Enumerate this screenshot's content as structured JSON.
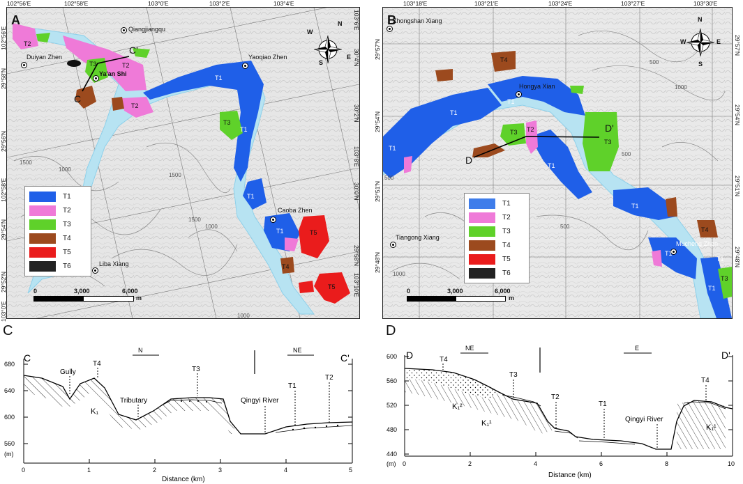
{
  "panel_a": {
    "letter": "A",
    "top_coords": [
      "102°56'E",
      "102°58'E",
      "103°0'E",
      "103°2'E",
      "103°4'E"
    ],
    "left_coords": [
      "102°56'E",
      "29°58'N",
      "29°56'N",
      "102°58'E",
      "29°54'N",
      "29°52'N",
      "103°0'E"
    ],
    "right_coords": [
      "103°6'E",
      "30°4'N",
      "30°2'N",
      "103°8'E",
      "30°0'N",
      "29°58'N",
      "103°10'E"
    ],
    "places": [
      "Qiangjiangqu",
      "Duiyan Zhen",
      "Ya'an Shi",
      "Yaoqiao Zhen",
      "Caoba Zhen",
      "Liba Xiang"
    ],
    "section_c": "C",
    "section_c_prime": "C'",
    "terrace_labels": [
      "T2",
      "T3",
      "T2",
      "T2",
      "T1",
      "T3",
      "T1",
      "T1",
      "T1",
      "T5",
      "T4",
      "T5"
    ],
    "contours": [
      "1500",
      "1000",
      "1500",
      "1000",
      "1500",
      "1000"
    ],
    "legend": [
      "T1",
      "T2",
      "T3",
      "T4",
      "T5",
      "T6"
    ],
    "scale": {
      "start": "0",
      "mid": "3,000",
      "end": "6,000",
      "unit": "m"
    }
  },
  "panel_b": {
    "letter": "B",
    "top_coords": [
      "103°18'E",
      "103°21'E",
      "103°24'E",
      "103°27'E",
      "103°30'E"
    ],
    "left_coords": [
      "29°57'N",
      "29°54'N",
      "29°51'N",
      "29°48'N"
    ],
    "right_coords": [
      "29°57'N",
      "29°54'N",
      "29°51'N",
      "29°48'N"
    ],
    "places": [
      "Zhongshan Xiang",
      "Hongya Xian",
      "Tiangong Xiang",
      "Mucheng Zhen"
    ],
    "section_d": "D",
    "section_d_prime": "D'",
    "terrace_labels": [
      "T4",
      "T1",
      "T1",
      "T1",
      "T3",
      "T2",
      "T3",
      "T1",
      "T1",
      "T1",
      "T4",
      "T1",
      "T3",
      "T1"
    ],
    "contours": [
      "500",
      "500",
      "1000",
      "1000",
      "500",
      "500"
    ],
    "legend": [
      "T1",
      "T2",
      "T3",
      "T4",
      "T5",
      "T6"
    ],
    "scale": {
      "start": "0",
      "mid": "3,000",
      "end": "6,000",
      "unit": "m"
    }
  },
  "legend_colors": {
    "T1": "#1f5fe8",
    "T2": "#ef7ad8",
    "T3": "#5fd12a",
    "T4": "#9c4a1e",
    "T5": "#ea1c1c",
    "T6": "#222222"
  },
  "compass": {
    "n": "N",
    "s": "S",
    "e": "E",
    "w": "W"
  },
  "panel_c": {
    "letter": "C",
    "start": "C",
    "end": "C'",
    "unit": "(m)",
    "xlabel": "Distance (km)",
    "yticks": [
      "680",
      "640",
      "600",
      "560"
    ],
    "xticks": [
      "0",
      "1",
      "2",
      "3",
      "4",
      "5"
    ],
    "directions": [
      "N",
      "NE"
    ],
    "labels": {
      "gully": "Gully",
      "t4": "T4",
      "t3": "T3",
      "trib": "Tributary",
      "k1": "K₁",
      "river": "Qingyi River",
      "t1": "T1",
      "t2": "T2"
    }
  },
  "panel_d": {
    "letter": "D",
    "start": "D",
    "end": "D'",
    "unit": "(m)",
    "xlabel": "Distance (km)",
    "yticks": [
      "600",
      "560",
      "520",
      "480",
      "440"
    ],
    "xticks": [
      "0",
      "2",
      "4",
      "6",
      "8",
      "10"
    ],
    "directions": [
      "NE",
      "E"
    ],
    "labels": {
      "t4a": "T4",
      "t3": "T3",
      "t2": "T2",
      "t1": "T1",
      "river": "Qingyi River",
      "t4b": "T4",
      "k12": "K₁²",
      "k11a": "K₁¹",
      "k11b": "K₁¹"
    }
  }
}
